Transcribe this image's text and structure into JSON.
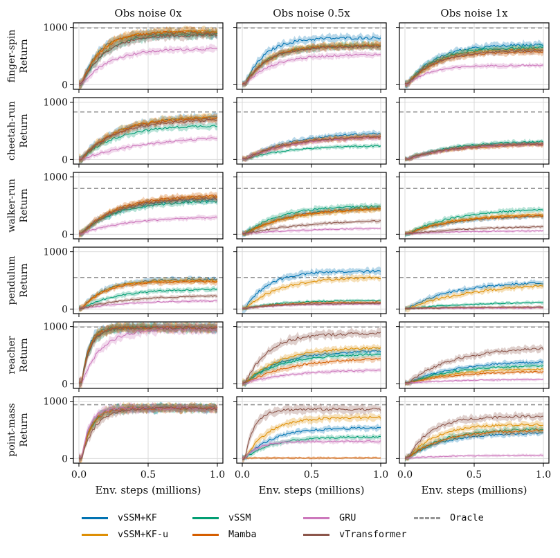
{
  "colors": {
    "vssm_kf": "#0173b2",
    "vssm_kf_u": "#de8f05",
    "vssm": "#029e73",
    "mamba": "#d55e00",
    "gru": "#cc78bc",
    "vtransformer": "#8c564b",
    "oracle": "#949494"
  },
  "chart_data": {
    "type": "line",
    "columns": [
      "Obs noise 0x",
      "Obs noise 0.5x",
      "Obs noise 1x"
    ],
    "rows": [
      "finger-spin",
      "cheetah-run",
      "walker-run",
      "pendulum",
      "reacher",
      "point-mass"
    ],
    "ylabel_suffix": "Return",
    "xlabel": "Env. steps (millions)",
    "x_ticks": [
      "0.0",
      "0.5",
      "1.0"
    ],
    "y_ticks": [
      "0",
      "1000"
    ],
    "xlim": [
      -0.04,
      1.04
    ],
    "ylim": [
      -80,
      1080
    ],
    "series_names": [
      "vSSM+KF",
      "vSSM+KF-u",
      "vSSM",
      "Mamba",
      "GRU",
      "vTransformer",
      "Oracle"
    ],
    "series_keys": [
      "vssm_kf",
      "vssm_kf_u",
      "vssm",
      "mamba",
      "gru",
      "vtransformer"
    ],
    "oracle": {
      "finger-spin": 990,
      "cheetah-run": 830,
      "walker-run": 800,
      "pendulum": 550,
      "reacher": 990,
      "point-mass": 940
    },
    "panels": [
      {
        "task": "finger-spin",
        "noise": "0x",
        "final": {
          "vssm_kf": 900,
          "vssm_kf_u": 930,
          "vssm": 880,
          "mamba": 920,
          "gru": 630,
          "vtransformer": 870
        },
        "rate": {
          "vssm_kf": 8,
          "vssm_kf_u": 7,
          "vssm": 6,
          "mamba": 7,
          "gru": 5,
          "vtransformer": 6
        }
      },
      {
        "task": "finger-spin",
        "noise": "0.5x",
        "final": {
          "vssm_kf": 820,
          "vssm_kf_u": 690,
          "vssm": 680,
          "mamba": 680,
          "gru": 530,
          "vtransformer": 670
        },
        "rate": {
          "vssm_kf": 7,
          "vssm_kf_u": 6,
          "vssm": 6,
          "mamba": 6,
          "gru": 5,
          "vtransformer": 6
        }
      },
      {
        "task": "finger-spin",
        "noise": "1x",
        "final": {
          "vssm_kf": 700,
          "vssm_kf_u": 620,
          "vssm": 650,
          "mamba": 580,
          "gru": 340,
          "vtransformer": 600
        },
        "rate": {
          "vssm_kf": 5,
          "vssm_kf_u": 5,
          "vssm": 5,
          "mamba": 5,
          "gru": 6,
          "vtransformer": 5
        }
      },
      {
        "task": "cheetah-run",
        "noise": "0x",
        "final": {
          "vssm_kf": 750,
          "vssm_kf_u": 750,
          "vssm": 600,
          "mamba": 730,
          "gru": 430,
          "vtransformer": 700
        },
        "rate": {
          "vssm_kf": 4,
          "vssm_kf_u": 4,
          "vssm": 4,
          "mamba": 4,
          "gru": 2,
          "vtransformer": 4
        }
      },
      {
        "task": "cheetah-run",
        "noise": "0.5x",
        "final": {
          "vssm_kf": 480,
          "vssm_kf_u": 430,
          "vssm": 250,
          "mamba": 410,
          "gru": 400,
          "vtransformer": 420
        },
        "rate": {
          "vssm_kf": 3,
          "vssm_kf_u": 3,
          "vssm": 3,
          "mamba": 3,
          "gru": 3,
          "vtransformer": 3
        }
      },
      {
        "task": "cheetah-run",
        "noise": "1x",
        "final": {
          "vssm_kf": 300,
          "vssm_kf_u": 290,
          "vssm": 330,
          "mamba": 270,
          "gru": 280,
          "vtransformer": 290
        },
        "rate": {
          "vssm_kf": 3,
          "vssm_kf_u": 3,
          "vssm": 3,
          "mamba": 3,
          "gru": 3,
          "vtransformer": 3
        }
      },
      {
        "task": "walker-run",
        "noise": "0x",
        "final": {
          "vssm_kf": 620,
          "vssm_kf_u": 660,
          "vssm": 580,
          "mamba": 680,
          "gru": 310,
          "vtransformer": 640
        },
        "rate": {
          "vssm_kf": 4,
          "vssm_kf_u": 4,
          "vssm": 4,
          "mamba": 4,
          "gru": 3,
          "vtransformer": 4
        }
      },
      {
        "task": "walker-run",
        "noise": "0.5x",
        "final": {
          "vssm_kf": 480,
          "vssm_kf_u": 460,
          "vssm": 500,
          "mamba": 470,
          "gru": 120,
          "vtransformer": 270
        },
        "rate": {
          "vssm_kf": 3,
          "vssm_kf_u": 3,
          "vssm": 4,
          "mamba": 3,
          "gru": 2,
          "vtransformer": 2
        }
      },
      {
        "task": "walker-run",
        "noise": "1x",
        "final": {
          "vssm_kf": 330,
          "vssm_kf_u": 360,
          "vssm": 450,
          "mamba": 340,
          "gru": 70,
          "vtransformer": 150
        },
        "rate": {
          "vssm_kf": 3,
          "vssm_kf_u": 3,
          "vssm": 3,
          "mamba": 3,
          "gru": 2,
          "vtransformer": 2
        }
      },
      {
        "task": "pendulum",
        "noise": "0x",
        "final": {
          "vssm_kf": 520,
          "vssm_kf_u": 500,
          "vssm": 350,
          "mamba": 480,
          "gru": 150,
          "vtransformer": 240
        },
        "rate": {
          "vssm_kf": 6,
          "vssm_kf_u": 6,
          "vssm": 4,
          "mamba": 6,
          "gru": 3,
          "vtransformer": 3
        }
      },
      {
        "task": "pendulum",
        "noise": "0.5x",
        "final": {
          "vssm_kf": 660,
          "vssm_kf_u": 560,
          "vssm": 150,
          "mamba": 120,
          "gru": 90,
          "vtransformer": 100
        },
        "rate": {
          "vssm_kf": 6,
          "vssm_kf_u": 4,
          "vssm": 4,
          "mamba": 4,
          "gru": 4,
          "vtransformer": 4
        }
      },
      {
        "task": "pendulum",
        "noise": "1x",
        "final": {
          "vssm_kf": 480,
          "vssm_kf_u": 470,
          "vssm": 130,
          "mamba": 30,
          "gru": 20,
          "vtransformer": 40
        },
        "rate": {
          "vssm_kf": 3,
          "vssm_kf_u": 2,
          "vssm": 2,
          "mamba": 2,
          "gru": 2,
          "vtransformer": 2
        }
      },
      {
        "task": "reacher",
        "noise": "0x",
        "final": {
          "vssm_kf": 980,
          "vssm_kf_u": 980,
          "vssm": 980,
          "mamba": 980,
          "gru": 960,
          "vtransformer": 980
        },
        "rate": {
          "vssm_kf": 20,
          "vssm_kf_u": 18,
          "vssm": 16,
          "mamba": 18,
          "gru": 7,
          "vtransformer": 16
        }
      },
      {
        "task": "reacher",
        "noise": "0.5x",
        "final": {
          "vssm_kf": 580,
          "vssm_kf_u": 640,
          "vssm": 520,
          "mamba": 460,
          "gru": 250,
          "vtransformer": 880
        },
        "rate": {
          "vssm_kf": 4,
          "vssm_kf_u": 4,
          "vssm": 4,
          "mamba": 3,
          "gru": 3,
          "vtransformer": 6
        }
      },
      {
        "task": "reacher",
        "noise": "1x",
        "final": {
          "vssm_kf": 400,
          "vssm_kf_u": 270,
          "vssm": 330,
          "mamba": 220,
          "gru": 80,
          "vtransformer": 650
        },
        "rate": {
          "vssm_kf": 3,
          "vssm_kf_u": 3,
          "vssm": 3,
          "mamba": 3,
          "gru": 3,
          "vtransformer": 3
        }
      },
      {
        "task": "point-mass",
        "noise": "0x",
        "final": {
          "vssm_kf": 880,
          "vssm_kf_u": 890,
          "vssm": 880,
          "mamba": 880,
          "gru": 880,
          "vtransformer": 880
        },
        "rate": {
          "vssm_kf": 15,
          "vssm_kf_u": 14,
          "vssm": 14,
          "mamba": 14,
          "gru": 18,
          "vtransformer": 10
        }
      },
      {
        "task": "point-mass",
        "noise": "0.5x",
        "final": {
          "vssm_kf": 540,
          "vssm_kf_u": 720,
          "vssm": 380,
          "mamba": 10,
          "gru": 300,
          "vtransformer": 860
        },
        "rate": {
          "vssm_kf": 5,
          "vssm_kf_u": 6,
          "vssm": 5,
          "mamba": 1,
          "gru": 10,
          "vtransformer": 15
        }
      },
      {
        "task": "point-mass",
        "noise": "1x",
        "final": {
          "vssm_kf": 450,
          "vssm_kf_u": 600,
          "vssm": 520,
          "mamba": 500,
          "gru": 60,
          "vtransformer": 740
        },
        "rate": {
          "vssm_kf": 4,
          "vssm_kf_u": 5,
          "vssm": 4,
          "mamba": 4,
          "gru": 3,
          "vtransformer": 6
        }
      }
    ]
  }
}
